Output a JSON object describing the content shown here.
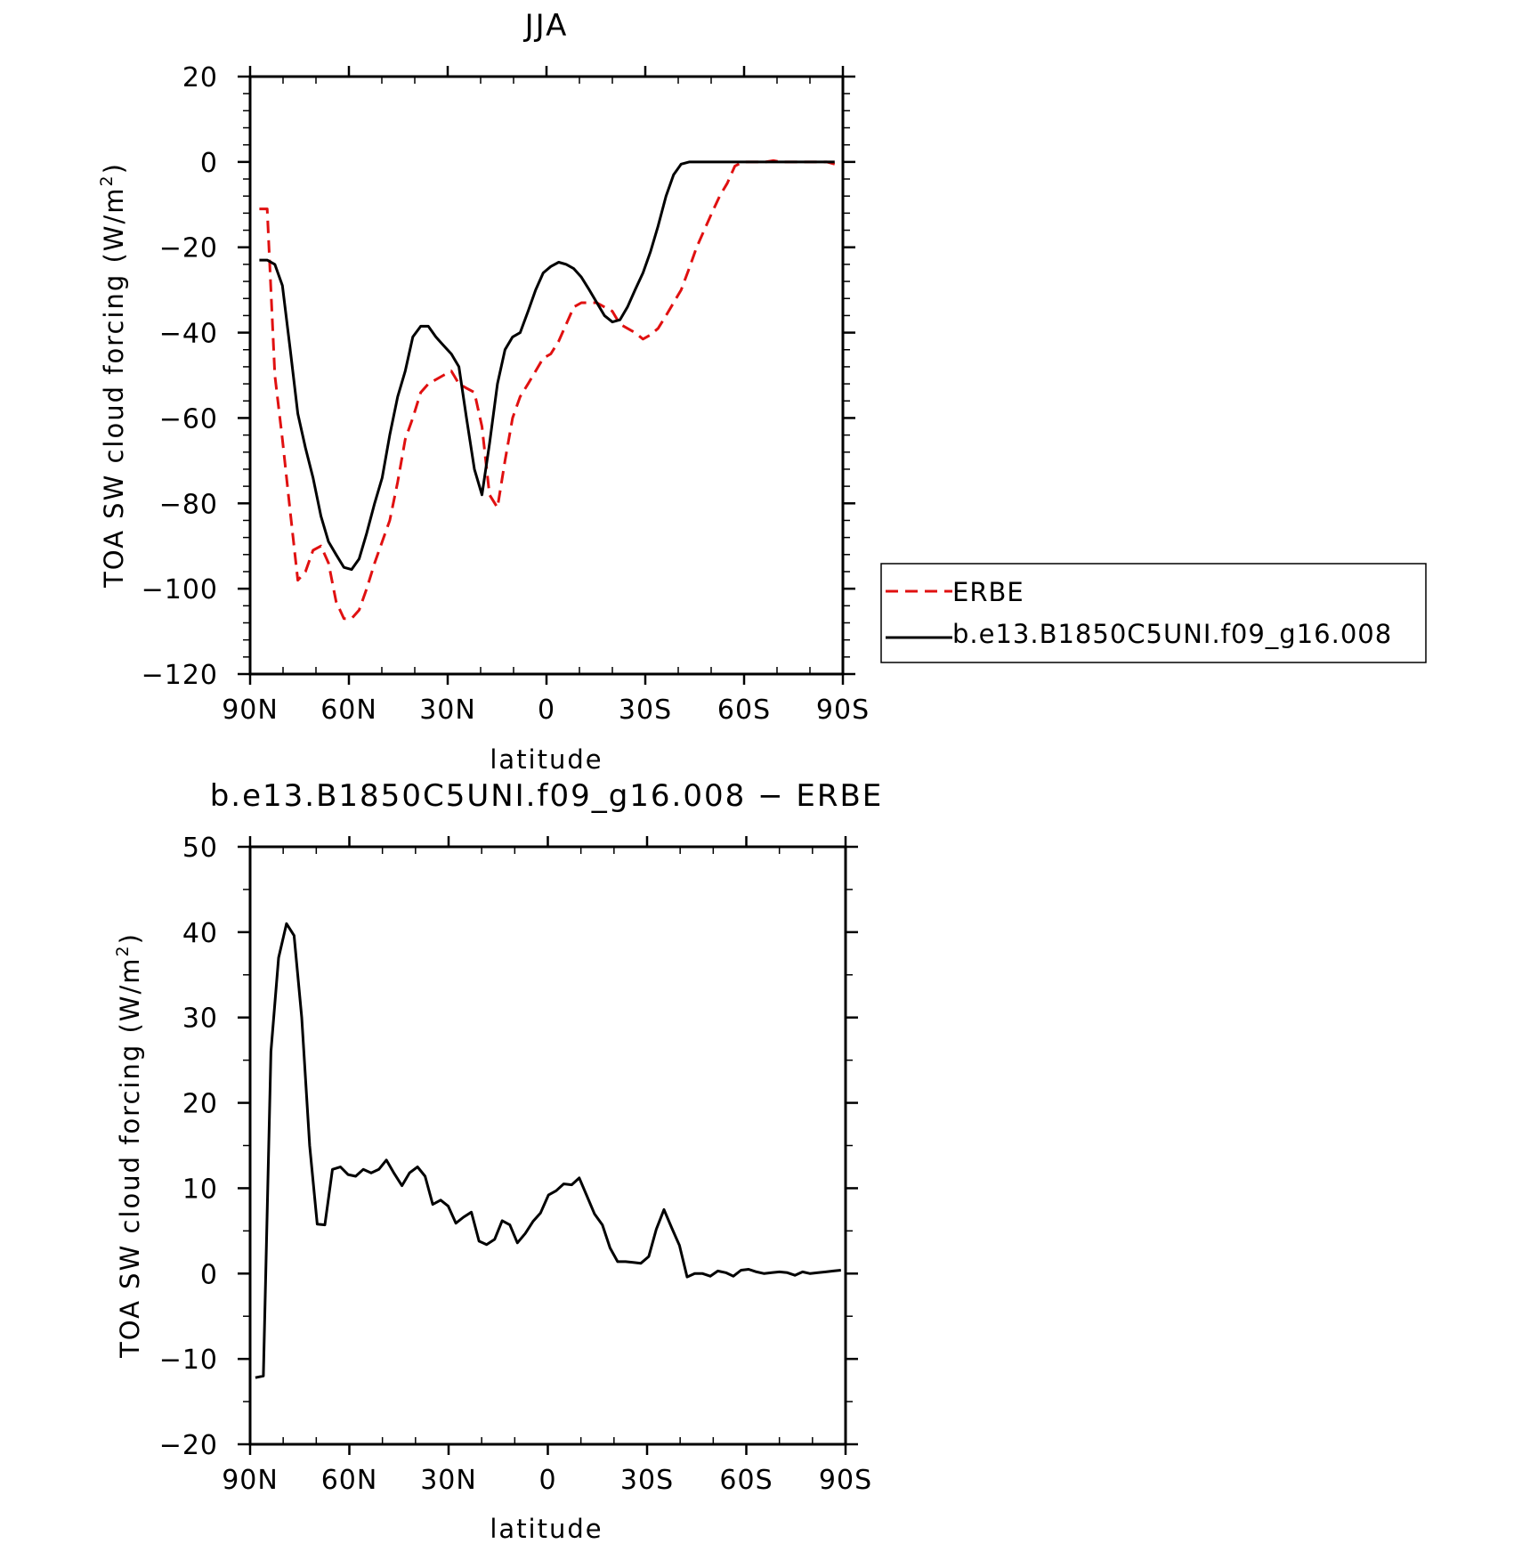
{
  "chart_data": [
    {
      "type": "line",
      "title": "JJA",
      "xlabel": "latitude",
      "ylabel": "TOA SW cloud forcing (W/m²)",
      "ylabel_main": "TOA SW cloud forcing (W/m",
      "ylabel_sup": "2",
      "ylabel_close": ")",
      "xlim": [
        -90,
        90
      ],
      "ylim": [
        -120,
        20
      ],
      "xticks": [
        -90,
        -60,
        -30,
        0,
        30,
        60,
        90
      ],
      "xtick_labels": [
        "90N",
        "60N",
        "30N",
        "0",
        "30S",
        "60S",
        "90S"
      ],
      "yticks": [
        -120,
        -100,
        -80,
        -60,
        -40,
        -20,
        0,
        20
      ],
      "ytick_labels": [
        "−120",
        "−100",
        "−80",
        "−60",
        "−40",
        "−20",
        "0",
        "20"
      ],
      "grid": false,
      "legend": "right",
      "series": [
        {
          "name": "ERBE",
          "color": "#e01010",
          "dash": "dashed",
          "x": [
            -87.2,
            -84.8,
            -82.5,
            -80.2,
            -77.8,
            -75.5,
            -73.2,
            -70.9,
            -68.5,
            -66.2,
            -63.9,
            -61.5,
            -59.2,
            -56.9,
            -54.6,
            -52.2,
            -49.9,
            -47.6,
            -45.2,
            -42.9,
            -40.6,
            -38.2,
            -35.9,
            -33.6,
            -31.3,
            -28.9,
            -26.6,
            -24.3,
            -21.9,
            -19.6,
            -17.3,
            -14.9,
            -12.6,
            -10.3,
            -8,
            -5.6,
            -3.3,
            -1,
            1.3,
            3.7,
            6,
            8.3,
            10.6,
            13,
            15.3,
            17.6,
            20,
            22.3,
            24.6,
            26.9,
            29.3,
            31.6,
            33.9,
            36.3,
            38.6,
            40.9,
            43.3,
            45.6,
            47.9,
            50.2,
            52.6,
            54.9,
            57.2,
            59.6,
            61.9,
            64.2,
            66.5,
            68.9,
            71.2,
            73.5,
            75.9,
            78.2,
            80.5,
            82.9,
            85.2,
            87.5
          ],
          "y": [
            -11,
            -11,
            -50,
            -65,
            -82,
            -98,
            -96,
            -91,
            -90,
            -94,
            -103,
            -107,
            -107,
            -105,
            -100,
            -94,
            -89,
            -84,
            -75,
            -65,
            -60,
            -54,
            -52,
            -51,
            -50,
            -49,
            -52,
            -53,
            -54,
            -62,
            -78,
            -81,
            -70,
            -60,
            -55,
            -52,
            -49,
            -46,
            -45,
            -42,
            -38,
            -34,
            -33,
            -33,
            -33,
            -34,
            -35,
            -38,
            -39,
            -40,
            -41.5,
            -40.5,
            -39,
            -36,
            -33,
            -30,
            -25,
            -20,
            -16,
            -12,
            -8,
            -5,
            -1,
            0,
            0,
            0,
            0,
            0.3,
            0,
            0,
            0,
            0,
            0,
            0,
            0,
            -0.5
          ]
        },
        {
          "name": "b.e13.B1850C5UNI.f09_g16.008",
          "color": "#000000",
          "dash": "solid",
          "x": [
            -87.2,
            -84.8,
            -82.5,
            -80.2,
            -77.8,
            -75.5,
            -73.2,
            -70.9,
            -68.5,
            -66.2,
            -63.9,
            -61.5,
            -59.2,
            -56.9,
            -54.6,
            -52.2,
            -49.9,
            -47.6,
            -45.2,
            -42.9,
            -40.6,
            -38.2,
            -35.9,
            -33.6,
            -31.3,
            -28.9,
            -26.6,
            -24.3,
            -21.9,
            -19.6,
            -17.3,
            -14.9,
            -12.6,
            -10.3,
            -8,
            -5.6,
            -3.3,
            -1,
            1.3,
            3.7,
            6,
            8.3,
            10.6,
            13,
            15.3,
            17.6,
            20,
            22.3,
            24.6,
            26.9,
            29.3,
            31.6,
            33.9,
            36.3,
            38.6,
            40.9,
            43.3,
            45.6,
            47.9,
            50.2,
            52.6,
            54.9,
            57.2,
            59.6,
            61.9,
            64.2,
            66.5,
            68.9,
            71.2,
            73.5,
            75.9,
            78.2,
            80.5,
            82.9,
            85.2,
            87.5
          ],
          "y": [
            -23,
            -23,
            -24,
            -29,
            -44,
            -59,
            -67,
            -74,
            -83,
            -89,
            -92,
            -95,
            -95.5,
            -93,
            -87,
            -80,
            -74,
            -64,
            -55,
            -49,
            -41,
            -38.5,
            -38.5,
            -41,
            -43,
            -45,
            -48,
            -60,
            -72,
            -78,
            -66,
            -52,
            -44,
            -41,
            -40,
            -35,
            -30,
            -26,
            -24.5,
            -23.5,
            -24,
            -25,
            -27,
            -30,
            -33,
            -36,
            -37.5,
            -37,
            -34,
            -30,
            -26,
            -21,
            -15,
            -8,
            -3,
            -0.5,
            0,
            0,
            0,
            0,
            0,
            0,
            0,
            0,
            0,
            0,
            0,
            0,
            0,
            0,
            0,
            0,
            0,
            0,
            0,
            0
          ]
        }
      ]
    },
    {
      "type": "line",
      "title": "b.e13.B1850C5UNI.f09_g16.008 − ERBE",
      "xlabel": "latitude",
      "ylabel": "TOA SW cloud forcing (W/m²)",
      "ylabel_main": "TOA SW cloud forcing (W/m",
      "ylabel_sup": "2",
      "ylabel_close": ")",
      "xlim": [
        -90,
        90
      ],
      "ylim": [
        -20,
        50
      ],
      "xticks": [
        -90,
        -60,
        -30,
        0,
        30,
        60,
        90
      ],
      "xtick_labels": [
        "90N",
        "60N",
        "30N",
        "0",
        "30S",
        "60S",
        "90S"
      ],
      "yticks": [
        -20,
        -10,
        0,
        10,
        20,
        30,
        40,
        50
      ],
      "ytick_labels": [
        "−20",
        "−10",
        "0",
        "10",
        "20",
        "30",
        "40",
        "50"
      ],
      "grid": false,
      "series": [
        {
          "color": "#000000",
          "dash": "solid",
          "x": [
            -88.4,
            -86,
            -83.7,
            -81.4,
            -79,
            -76.7,
            -74.4,
            -72,
            -69.7,
            -67.4,
            -65.1,
            -62.7,
            -60.4,
            -58.1,
            -55.8,
            -53.4,
            -51.1,
            -48.8,
            -46.4,
            -44.1,
            -41.8,
            -39.4,
            -37.1,
            -34.8,
            -32.4,
            -30.1,
            -27.8,
            -25.5,
            -23.1,
            -20.8,
            -18.5,
            -16.1,
            -13.8,
            -11.5,
            -9.2,
            -6.8,
            -4.5,
            -2.2,
            0.2,
            2.5,
            4.8,
            7.2,
            9.5,
            11.8,
            14.1,
            16.5,
            18.8,
            21.1,
            23.5,
            25.8,
            28.1,
            30.5,
            32.8,
            35.1,
            37.4,
            39.8,
            42.1,
            44.4,
            46.8,
            49.1,
            51.4,
            53.8,
            56.1,
            58.4,
            60.7,
            63.1,
            65.4,
            67.7,
            70,
            72.4,
            74.7,
            77,
            79.3,
            81.7,
            84,
            86.3,
            88.6
          ],
          "y": [
            -12.2,
            -12,
            26,
            37,
            41,
            39.6,
            30,
            15,
            5.8,
            5.7,
            12.2,
            12.5,
            11.6,
            11.4,
            12.2,
            11.8,
            12.2,
            13.3,
            11.7,
            10.3,
            11.8,
            12.5,
            11.4,
            8.1,
            8.6,
            7.9,
            5.9,
            6.6,
            7.2,
            3.8,
            3.4,
            4,
            6.2,
            5.7,
            3.6,
            4.7,
            6.1,
            7.1,
            9.2,
            9.7,
            10.5,
            10.4,
            11.2,
            9.1,
            7,
            5.7,
            3,
            1.4,
            1.4,
            1.3,
            1.2,
            2,
            5.2,
            7.5,
            5.4,
            3.3,
            -0.4,
            0,
            0,
            -0.3,
            0.3,
            0.1,
            -0.3,
            0.4,
            0.5,
            0.2,
            0,
            0.1,
            0.2,
            0.1,
            -0.2,
            0.2,
            0,
            0.1,
            0.2,
            0.3,
            0.4
          ]
        }
      ]
    }
  ]
}
